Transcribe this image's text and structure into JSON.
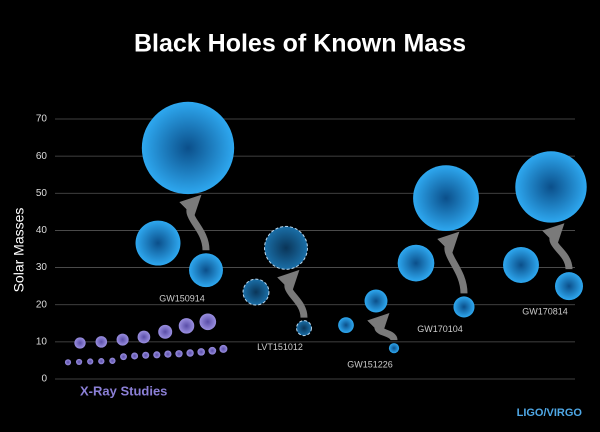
{
  "chart_data": {
    "type": "bubble",
    "title": "Black Holes of Known Mass",
    "y_label": "Solar Masses",
    "ylim": [
      0,
      70
    ],
    "yticks": [
      0,
      10,
      20,
      30,
      40,
      50,
      60,
      70
    ],
    "grid": true,
    "events": [
      {
        "name": "GW150914",
        "color": "#2b9be0",
        "masses": [
          36.6,
          29.3,
          62.2
        ]
      },
      {
        "name": "LVT151012",
        "color": "#1a6fa8",
        "dashed": true,
        "masses": [
          23.4,
          13.7,
          35.3
        ]
      },
      {
        "name": "GW151226",
        "color": "#2b9be0",
        "masses": [
          14.5,
          8.3,
          21
        ]
      },
      {
        "name": "GW170104",
        "color": "#2b9be0",
        "masses": [
          31.2,
          19.4,
          48.7
        ]
      },
      {
        "name": "GW170814",
        "color": "#2b9be0",
        "masses": [
          30.7,
          25,
          51.7
        ]
      }
    ],
    "xray": {
      "name": "X-Ray Studies",
      "color": "#8b7fd6",
      "rows": [
        [
          4.5,
          4.6,
          4.7,
          4.8,
          4.9,
          6,
          6.2,
          6.4,
          6.5,
          6.7,
          6.8,
          7,
          7.3,
          7.6,
          8.1
        ],
        [
          9.7,
          10,
          10.6,
          11.3,
          12.7,
          14.3,
          15.4
        ]
      ]
    },
    "credit": "LIGO/VIRGO"
  }
}
